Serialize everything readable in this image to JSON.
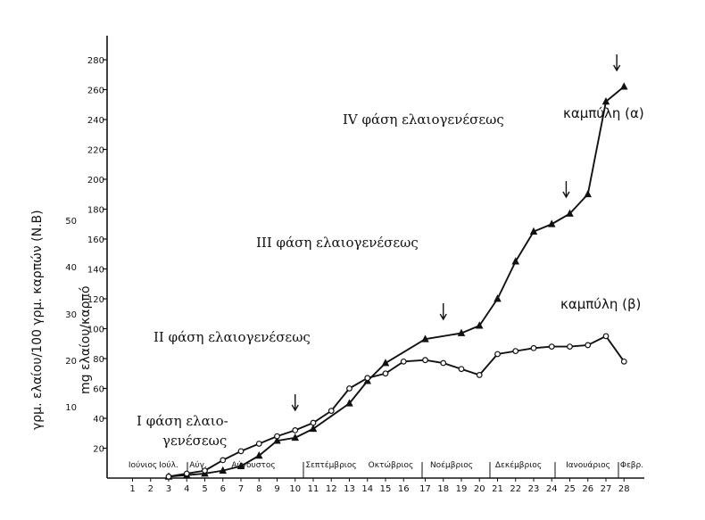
{
  "chart_data": {
    "type": "line",
    "ylabel": "mg ελαίου/καρπό",
    "ylabel_outer": "γρμ. ελαίου/100 γρμ. καρπών (N.B)",
    "ylim": [
      0,
      285
    ],
    "y_ticks": [
      20,
      40,
      60,
      80,
      100,
      120,
      140,
      160,
      180,
      200,
      220,
      240,
      260,
      280
    ],
    "secondary_y_ticks": [
      "10",
      "20",
      "30",
      "40",
      "50"
    ],
    "x_ticks": [
      "1",
      "2",
      "3",
      "4",
      "5",
      "6",
      "7",
      "8",
      "9",
      "10",
      "11",
      "12",
      "13",
      "14",
      "15",
      "16",
      "17",
      "18",
      "19",
      "20",
      "21",
      "22",
      "23",
      "24",
      "25",
      "26",
      "27",
      "28"
    ],
    "x_tick_labels": [
      "1",
      "2",
      "3",
      "4",
      "5",
      "6",
      "7",
      "8",
      "9",
      "10",
      "11",
      "12",
      "13",
      "14",
      "15",
      "16",
      "17",
      "18",
      "19",
      "20",
      "21",
      "22",
      "23",
      "24",
      "25",
      "26",
      "27",
      "28"
    ],
    "months": [
      "Ιούνιος",
      "Ιούλ.",
      "Αύγ.",
      "Αύγουστος",
      "Σεπτέμβριος",
      "Οκτώβριος",
      "Νοέμβριος",
      "Δεκέμβριος",
      "Ιανουάριος",
      "Φεβρ."
    ],
    "series": [
      {
        "name": "καμπύλη (α)",
        "marker": "triangle",
        "x": [
          3,
          4,
          5,
          6,
          7,
          8,
          9,
          10,
          11,
          13,
          14,
          15,
          17,
          19,
          20,
          21,
          22,
          23,
          24,
          25,
          26,
          27,
          28
        ],
        "values": [
          1,
          2,
          3,
          5,
          8,
          15,
          25,
          27,
          33,
          50,
          65,
          77,
          93,
          97,
          102,
          120,
          145,
          165,
          170,
          177,
          190,
          252,
          262
        ]
      },
      {
        "name": "καμπύλη (β)",
        "marker": "circle",
        "x": [
          3,
          4,
          5,
          6,
          7,
          8,
          9,
          10,
          11,
          12,
          13,
          14,
          15,
          16,
          17,
          18,
          19,
          20,
          21,
          22,
          23,
          24,
          25,
          26,
          27,
          28
        ],
        "values": [
          1,
          3,
          5,
          12,
          18,
          23,
          28,
          32,
          37,
          45,
          60,
          67,
          70,
          78,
          79,
          77,
          73,
          69,
          83,
          85,
          87,
          88,
          88,
          89,
          95,
          78
        ]
      }
    ],
    "arrows_at": [
      10,
      18,
      24.8,
      27.6
    ],
    "annotations": {
      "phase1_line1": "I φάση ελαιο-",
      "phase1_line2": "γενέσεως",
      "phase2": "II φάση ελαιογενέσεως",
      "phase3": "III φάση ελαιογενέσεως",
      "phase4": "IV φάση ελαιογενέσεως",
      "curve_a": "καμπύλη (α)",
      "curve_b": "καμπύλη (β)"
    }
  }
}
